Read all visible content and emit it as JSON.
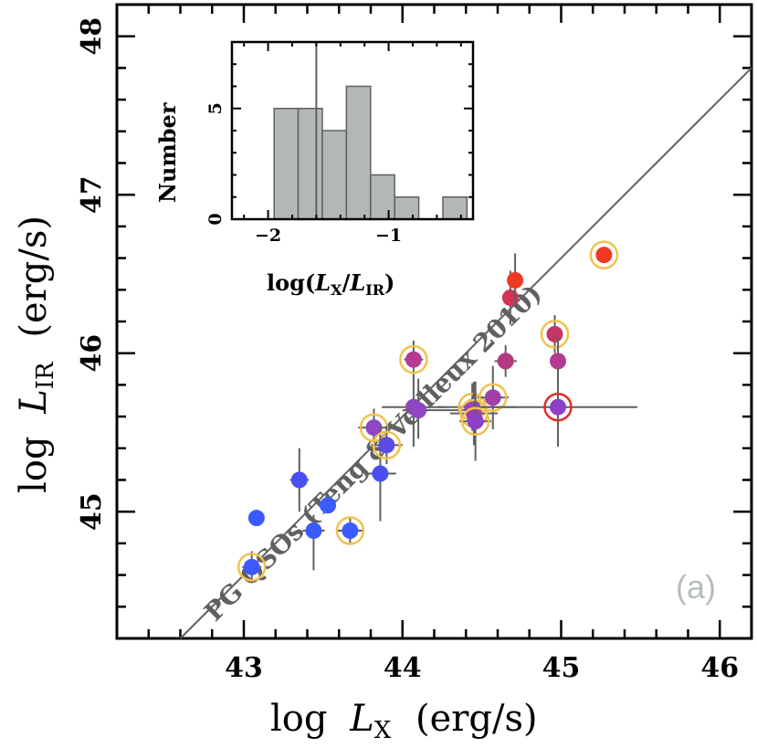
{
  "chart_data": {
    "type": "scatter",
    "xlabel": "log",
    "xlabel_symbol": "L",
    "xlabel_sub": "X",
    "xlabel_unit": "(erg/s)",
    "ylabel": "log",
    "ylabel_symbol": "L",
    "ylabel_sub": "IR",
    "ylabel_unit": "(erg/s)",
    "xlim": [
      42.2,
      46.2
    ],
    "ylim": [
      44.2,
      48.2
    ],
    "x_ticks": [
      "43",
      "44",
      "45",
      "46"
    ],
    "y_ticks": [
      "45",
      "46",
      "47",
      "48"
    ],
    "panel_label": "(a)",
    "relation": {
      "label": "PG QSOs (Teng & Veilleux 2010)",
      "slope": 1.0,
      "intercept": 1.6
    },
    "points": [
      {
        "x": 43.05,
        "y": 44.65,
        "xerr": [
          0.06,
          0.06
        ],
        "yerr": [
          0.1,
          0.1
        ],
        "color": "#3b5bff",
        "ring": "#f2c14e"
      },
      {
        "x": 43.08,
        "y": 44.96,
        "xerr": [
          0.0,
          0.0
        ],
        "yerr": [
          0.0,
          0.0
        ],
        "color": "#3b5bff",
        "ring": null
      },
      {
        "x": 43.35,
        "y": 45.2,
        "xerr": [
          0.06,
          0.06
        ],
        "yerr": [
          0.2,
          0.2
        ],
        "color": "#4a50f0",
        "ring": null
      },
      {
        "x": 43.44,
        "y": 44.88,
        "xerr": [
          0.07,
          0.07
        ],
        "yerr": [
          0.25,
          0.1
        ],
        "color": "#3b5bff",
        "ring": null
      },
      {
        "x": 43.53,
        "y": 45.04,
        "xerr": [
          0.0,
          0.0
        ],
        "yerr": [
          0.0,
          0.0
        ],
        "color": "#3b5bff",
        "ring": null
      },
      {
        "x": 43.67,
        "y": 44.88,
        "xerr": [
          0.08,
          0.08
        ],
        "yerr": [
          0.08,
          0.08
        ],
        "color": "#3b5bff",
        "ring": "#f2c14e"
      },
      {
        "x": 43.82,
        "y": 45.53,
        "xerr": [
          0.1,
          0.1
        ],
        "yerr": [
          0.12,
          0.12
        ],
        "color": "#9046c2",
        "ring": "#f2c14e"
      },
      {
        "x": 43.86,
        "y": 45.24,
        "xerr": [
          0.1,
          0.1
        ],
        "yerr": [
          0.3,
          0.3
        ],
        "color": "#4a50f0",
        "ring": null
      },
      {
        "x": 43.9,
        "y": 45.42,
        "xerr": [
          0.1,
          0.1
        ],
        "yerr": [
          0.12,
          0.12
        ],
        "color": "#5a4ae6",
        "ring": "#f2c14e"
      },
      {
        "x": 44.07,
        "y": 45.96,
        "xerr": [
          0.06,
          0.06
        ],
        "yerr": [
          0.12,
          0.12
        ],
        "color": "#b23a92",
        "ring": "#f2c14e"
      },
      {
        "x": 44.07,
        "y": 45.66,
        "xerr": [
          0.2,
          0.2
        ],
        "yerr": [
          0.25,
          0.2
        ],
        "color": "#9046c2",
        "ring": null
      },
      {
        "x": 44.1,
        "y": 45.64,
        "xerr": [
          0.1,
          0.3
        ],
        "yerr": [
          0.18,
          0.2
        ],
        "color": "#9046c2",
        "ring": null
      },
      {
        "x": 44.44,
        "y": 45.66,
        "xerr": [
          0.22,
          0.28
        ],
        "yerr": [
          0.15,
          0.15
        ],
        "color": "#9046c2",
        "ring": "#f2c14e"
      },
      {
        "x": 44.45,
        "y": 45.62,
        "xerr": [
          0.15,
          0.15
        ],
        "yerr": [
          0.2,
          0.2
        ],
        "color": "#a040a8",
        "ring": "#f2c14e"
      },
      {
        "x": 44.46,
        "y": 45.57,
        "xerr": [
          0.1,
          0.1
        ],
        "yerr": [
          0.25,
          0.25
        ],
        "color": "#8e3fc8",
        "ring": "#f2c14e"
      },
      {
        "x": 44.57,
        "y": 45.72,
        "xerr": [
          0.1,
          0.1
        ],
        "yerr": [
          0.2,
          0.2
        ],
        "color": "#a040a8",
        "ring": "#f2c14e"
      },
      {
        "x": 44.65,
        "y": 45.95,
        "xerr": [
          0.07,
          0.07
        ],
        "yerr": [
          0.1,
          0.1
        ],
        "color": "#b23a7e",
        "ring": null
      },
      {
        "x": 44.68,
        "y": 46.35,
        "xerr": [
          0.0,
          0.0
        ],
        "yerr": [
          0.17,
          0.17
        ],
        "color": "#d23454",
        "ring": null
      },
      {
        "x": 44.71,
        "y": 46.46,
        "xerr": [
          0.04,
          0.04
        ],
        "yerr": [
          0.17,
          0.17
        ],
        "color": "#ee3a22",
        "ring": null
      },
      {
        "x": 44.96,
        "y": 46.12,
        "xerr": [
          0.05,
          0.05
        ],
        "yerr": [
          0.12,
          0.12
        ],
        "color": "#c23666",
        "ring": "#f2c14e"
      },
      {
        "x": 44.98,
        "y": 45.95,
        "xerr": [
          0.0,
          0.0
        ],
        "yerr": [
          0.15,
          0.15
        ],
        "color": "#b23a92",
        "ring": null
      },
      {
        "x": 44.98,
        "y": 45.66,
        "xerr": [
          0.48,
          0.5
        ],
        "yerr": [
          0.25,
          0.25
        ],
        "color": "#8e3fc8",
        "ring": "#e0302a"
      },
      {
        "x": 45.27,
        "y": 46.62,
        "xerr": [
          0.05,
          0.05
        ],
        "yerr": [
          0.0,
          0.0
        ],
        "color": "#ee3a22",
        "ring": "#f2c14e"
      }
    ],
    "inset": {
      "type": "histogram",
      "xlabel": "log(",
      "xlabel_symbol": "L",
      "xlabel_sub1": "X",
      "xlabel_mid": "/",
      "xlabel_sub2": "IR",
      "xlabel_end": ")",
      "ylabel": "Number",
      "xlim": [
        -2.3,
        -0.3
      ],
      "ylim": [
        0,
        8
      ],
      "x_ticks": [
        "−2",
        "−1"
      ],
      "y_ticks": [
        "0",
        "5"
      ],
      "bins": [
        -1.95,
        -1.75,
        -1.55,
        -1.35,
        -1.15,
        -0.95,
        -0.75,
        -0.55,
        -0.35
      ],
      "counts": [
        5,
        5,
        4,
        6,
        2,
        1,
        0,
        1
      ],
      "marker_line_x": -1.6
    }
  },
  "colors": {
    "axis": "#000000",
    "relation_line": "#5f6060",
    "bar_fill": "#b3b8b6",
    "bar_stroke": "#5f6060",
    "errorbar": "#5f6060"
  }
}
